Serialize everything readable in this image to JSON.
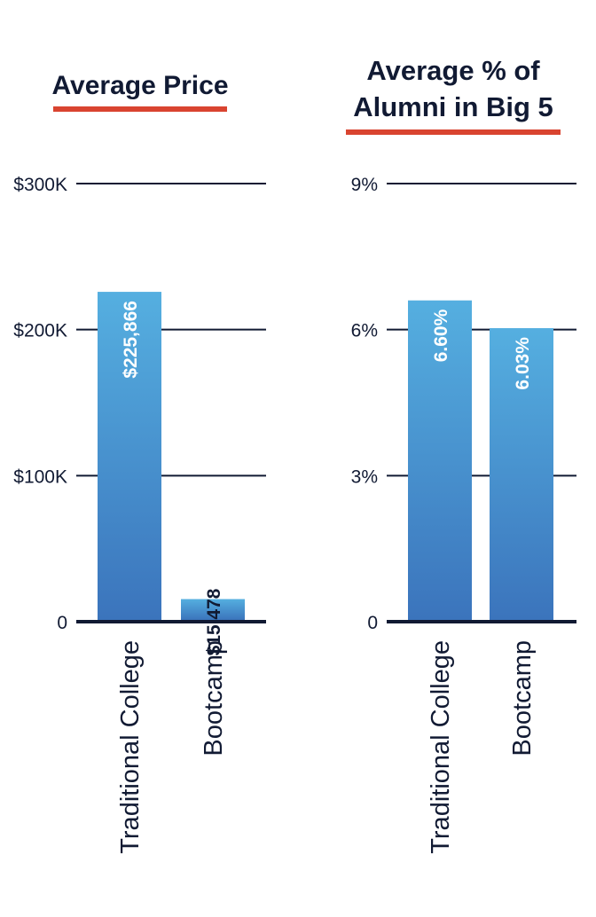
{
  "colors": {
    "bar_top": "#55afe0",
    "bar_bottom": "#3b74bc",
    "title_underline": "#d94430",
    "text": "#111a33",
    "value_label_inside": "#ffffff",
    "value_label_outside": "#111a33"
  },
  "chart_data": [
    {
      "type": "bar",
      "title": "Average Price",
      "categories": [
        "Traditional College",
        "Bootcamp"
      ],
      "values": [
        225866,
        15478
      ],
      "value_labels": [
        "$225,866",
        "$15,478"
      ],
      "ylim": [
        0,
        300000
      ],
      "yticks": [
        0,
        100000,
        200000,
        300000
      ],
      "ytick_labels": [
        "0",
        "$100K",
        "$200K",
        "$300K"
      ],
      "xlabel": "",
      "ylabel": "",
      "grid": true,
      "legend": "none"
    },
    {
      "type": "bar",
      "title": [
        "Average % of",
        "Alumni in Big 5"
      ],
      "categories": [
        "Traditional College",
        "Bootcamp"
      ],
      "values": [
        6.6,
        6.03
      ],
      "value_labels": [
        "6.60%",
        "6.03%"
      ],
      "ylim": [
        0,
        9
      ],
      "yticks": [
        0,
        3,
        6,
        9
      ],
      "ytick_labels": [
        "0",
        "3%",
        "6%",
        "9%"
      ],
      "xlabel": "",
      "ylabel": "",
      "grid": true,
      "legend": "none"
    }
  ]
}
